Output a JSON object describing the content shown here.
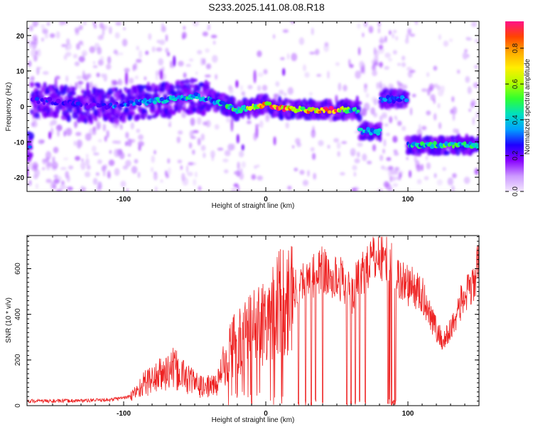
{
  "title": "S233.2025.141.08.08.R18",
  "chart_data": [
    {
      "type": "heatmap",
      "xlabel": "Height of straight line (km)",
      "ylabel": "Frequency (Hz)",
      "xlim": [
        -168,
        150
      ],
      "ylim": [
        -24,
        24
      ],
      "x_ticks": [
        -100,
        0,
        100
      ],
      "y_ticks": [
        -20,
        -10,
        0,
        10,
        20
      ],
      "colorbar": {
        "label": "Normalized spectral amplitude",
        "range": [
          0.0,
          0.95
        ],
        "ticks": [
          0.0,
          0.2,
          0.4,
          0.6,
          0.8
        ],
        "tick_labels": [
          "0.0",
          "0.2",
          "0.4",
          "0.6",
          "0.8"
        ],
        "colors": [
          "#f3e8ff",
          "#cc99ff",
          "#8800ff",
          "#1f00ff",
          "#00a0ff",
          "#00e0c0",
          "#30ff30",
          "#b0ff00",
          "#ffee00",
          "#ffaa00",
          "#ff4400",
          "#ff1188"
        ]
      },
      "ridge": [
        {
          "x": -165,
          "f": 2,
          "amp": 0.25
        },
        {
          "x": -140,
          "f": 1,
          "amp": 0.22
        },
        {
          "x": -120,
          "f": 0,
          "amp": 0.25
        },
        {
          "x": -100,
          "f": 0.5,
          "amp": 0.3
        },
        {
          "x": -80,
          "f": 1.5,
          "amp": 0.35
        },
        {
          "x": -65,
          "f": 2,
          "amp": 0.4
        },
        {
          "x": -50,
          "f": 3,
          "amp": 0.4
        },
        {
          "x": -35,
          "f": 1.5,
          "amp": 0.35
        },
        {
          "x": -20,
          "f": -1,
          "amp": 0.45
        },
        {
          "x": 0,
          "f": 0.5,
          "amp": 0.7
        },
        {
          "x": 10,
          "f": -0.5,
          "amp": 0.85
        },
        {
          "x": 25,
          "f": -1,
          "amp": 0.65
        },
        {
          "x": 45,
          "f": -1,
          "amp": 0.9
        },
        {
          "x": 60,
          "f": -1,
          "amp": 0.4
        },
        {
          "x": 72,
          "f": -7,
          "amp": 0.35
        },
        {
          "x": 90,
          "f": 2,
          "amp": 0.3
        },
        {
          "x": 110,
          "f": -11,
          "amp": 0.4
        },
        {
          "x": 130,
          "f": -11,
          "amp": 0.45
        },
        {
          "x": 148,
          "f": -11,
          "amp": 0.4
        }
      ]
    },
    {
      "type": "line",
      "xlabel": "Height of straight line (km)",
      "ylabel": "SNR (10 * v/v)",
      "xlim": [
        -168,
        150
      ],
      "ylim": [
        0,
        745
      ],
      "x_ticks": [
        -100,
        0,
        100
      ],
      "y_ticks": [
        0,
        200,
        400,
        600
      ],
      "color": "#ee2222",
      "x": [
        -168,
        -150,
        -130,
        -110,
        -95,
        -85,
        -75,
        -65,
        -55,
        -45,
        -35,
        -25,
        -15,
        -5,
        5,
        15,
        25,
        30,
        35,
        40,
        45,
        50,
        55,
        60,
        65,
        70,
        75,
        80,
        85,
        90,
        95,
        100,
        105,
        110,
        115,
        120,
        125,
        130,
        135,
        140,
        145,
        150
      ],
      "y": [
        20,
        20,
        22,
        25,
        40,
        100,
        130,
        160,
        120,
        80,
        90,
        250,
        300,
        350,
        420,
        480,
        540,
        560,
        580,
        600,
        550,
        560,
        550,
        470,
        560,
        600,
        640,
        660,
        640,
        600,
        550,
        530,
        510,
        480,
        420,
        330,
        280,
        330,
        420,
        480,
        510,
        620
      ],
      "dropouts": [
        -10,
        23,
        28,
        32,
        35,
        40,
        57,
        60,
        63,
        66,
        70,
        86,
        87,
        88,
        89,
        90
      ]
    }
  ]
}
